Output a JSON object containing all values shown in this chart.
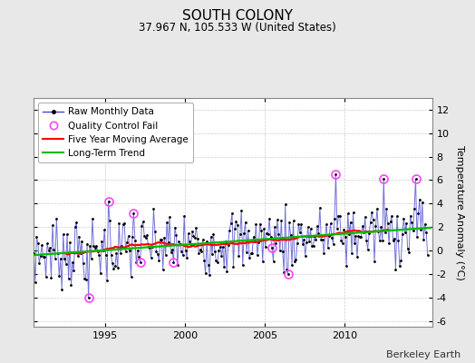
{
  "title": "SOUTH COLONY",
  "subtitle": "37.967 N, 105.533 W (United States)",
  "ylabel": "Temperature Anomaly (°C)",
  "attribution": "Berkeley Earth",
  "background_color": "#e8e8e8",
  "plot_bg_color": "#ffffff",
  "xlim": [
    1990.5,
    2015.5
  ],
  "ylim": [
    -6.5,
    13.0
  ],
  "yticks": [
    -6,
    -4,
    -2,
    0,
    2,
    4,
    6,
    8,
    10,
    12
  ],
  "xticks": [
    1995,
    2000,
    2005,
    2010
  ],
  "line_color": "#4444cc",
  "dot_color": "#000000",
  "qc_color": "#ff44ff",
  "mavg_color": "#ff0000",
  "trend_color": "#00bb00",
  "legend_loc": "upper left",
  "title_fontsize": 11,
  "subtitle_fontsize": 8.5,
  "tick_fontsize": 8,
  "ylabel_fontsize": 8,
  "legend_fontsize": 7.5,
  "attribution_fontsize": 8
}
